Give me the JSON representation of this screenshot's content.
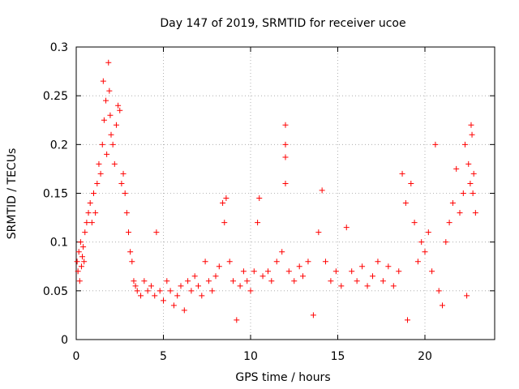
{
  "chart_data": {
    "type": "scatter",
    "title": "Day 147 of 2019, SRMTID for receiver ucoe",
    "xlabel": "GPS time / hours",
    "ylabel": "SRMTID / TECUs",
    "xlim": [
      0,
      24
    ],
    "ylim": [
      0,
      0.3
    ],
    "xticks": [
      0,
      5,
      10,
      15,
      20
    ],
    "yticks": [
      0,
      0.05,
      0.1,
      0.15,
      0.2,
      0.25,
      0.3
    ],
    "xtick_labels": [
      "0",
      "5",
      "10",
      "15",
      "20"
    ],
    "ytick_labels": [
      "0",
      "0.05",
      "0.1",
      "0.15",
      "0.2",
      "0.25",
      "0.3"
    ],
    "grid": true,
    "marker": "+",
    "color": "#ff0000",
    "series": [
      {
        "name": "SRMTID",
        "points": [
          [
            0.05,
            0.08
          ],
          [
            0.1,
            0.07
          ],
          [
            0.15,
            0.09
          ],
          [
            0.2,
            0.06
          ],
          [
            0.25,
            0.1
          ],
          [
            0.3,
            0.075
          ],
          [
            0.35,
            0.085
          ],
          [
            0.4,
            0.095
          ],
          [
            0.45,
            0.08
          ],
          [
            0.5,
            0.11
          ],
          [
            0.6,
            0.12
          ],
          [
            0.7,
            0.13
          ],
          [
            0.8,
            0.14
          ],
          [
            0.9,
            0.12
          ],
          [
            1.0,
            0.15
          ],
          [
            1.1,
            0.13
          ],
          [
            1.2,
            0.16
          ],
          [
            1.3,
            0.18
          ],
          [
            1.4,
            0.17
          ],
          [
            1.5,
            0.2
          ],
          [
            1.55,
            0.265
          ],
          [
            1.6,
            0.225
          ],
          [
            1.7,
            0.245
          ],
          [
            1.75,
            0.19
          ],
          [
            1.85,
            0.284
          ],
          [
            1.9,
            0.255
          ],
          [
            1.95,
            0.23
          ],
          [
            2.0,
            0.21
          ],
          [
            2.1,
            0.2
          ],
          [
            2.2,
            0.18
          ],
          [
            2.3,
            0.22
          ],
          [
            2.4,
            0.24
          ],
          [
            2.5,
            0.235
          ],
          [
            2.6,
            0.16
          ],
          [
            2.7,
            0.17
          ],
          [
            2.8,
            0.15
          ],
          [
            2.9,
            0.13
          ],
          [
            3.0,
            0.11
          ],
          [
            3.1,
            0.09
          ],
          [
            3.2,
            0.08
          ],
          [
            3.3,
            0.06
          ],
          [
            3.4,
            0.055
          ],
          [
            3.5,
            0.05
          ],
          [
            3.7,
            0.045
          ],
          [
            3.9,
            0.06
          ],
          [
            4.1,
            0.05
          ],
          [
            4.3,
            0.055
          ],
          [
            4.5,
            0.045
          ],
          [
            4.6,
            0.11
          ],
          [
            4.8,
            0.05
          ],
          [
            5.0,
            0.04
          ],
          [
            5.2,
            0.06
          ],
          [
            5.4,
            0.05
          ],
          [
            5.6,
            0.035
          ],
          [
            5.8,
            0.045
          ],
          [
            6.0,
            0.055
          ],
          [
            6.2,
            0.03
          ],
          [
            6.4,
            0.06
          ],
          [
            6.6,
            0.05
          ],
          [
            6.8,
            0.065
          ],
          [
            7.0,
            0.055
          ],
          [
            7.2,
            0.045
          ],
          [
            7.4,
            0.08
          ],
          [
            7.6,
            0.06
          ],
          [
            7.8,
            0.05
          ],
          [
            8.0,
            0.065
          ],
          [
            8.2,
            0.075
          ],
          [
            8.4,
            0.14
          ],
          [
            8.5,
            0.12
          ],
          [
            8.6,
            0.145
          ],
          [
            8.8,
            0.08
          ],
          [
            9.0,
            0.06
          ],
          [
            9.2,
            0.02
          ],
          [
            9.4,
            0.055
          ],
          [
            9.6,
            0.07
          ],
          [
            9.8,
            0.06
          ],
          [
            10.0,
            0.05
          ],
          [
            10.2,
            0.07
          ],
          [
            10.4,
            0.12
          ],
          [
            10.5,
            0.145
          ],
          [
            10.7,
            0.065
          ],
          [
            11.0,
            0.07
          ],
          [
            11.2,
            0.06
          ],
          [
            11.5,
            0.08
          ],
          [
            11.8,
            0.09
          ],
          [
            12.0,
            0.22
          ],
          [
            12.0,
            0.2
          ],
          [
            12.0,
            0.187
          ],
          [
            12.0,
            0.16
          ],
          [
            12.2,
            0.07
          ],
          [
            12.5,
            0.06
          ],
          [
            12.8,
            0.075
          ],
          [
            13.0,
            0.065
          ],
          [
            13.3,
            0.08
          ],
          [
            13.6,
            0.025
          ],
          [
            13.9,
            0.11
          ],
          [
            14.1,
            0.153
          ],
          [
            14.3,
            0.08
          ],
          [
            14.6,
            0.06
          ],
          [
            14.9,
            0.07
          ],
          [
            15.2,
            0.055
          ],
          [
            15.5,
            0.115
          ],
          [
            15.8,
            0.07
          ],
          [
            16.1,
            0.06
          ],
          [
            16.4,
            0.075
          ],
          [
            16.7,
            0.055
          ],
          [
            17.0,
            0.065
          ],
          [
            17.3,
            0.08
          ],
          [
            17.6,
            0.06
          ],
          [
            17.9,
            0.075
          ],
          [
            18.2,
            0.055
          ],
          [
            18.5,
            0.07
          ],
          [
            18.7,
            0.17
          ],
          [
            18.9,
            0.14
          ],
          [
            19.0,
            0.02
          ],
          [
            19.2,
            0.16
          ],
          [
            19.4,
            0.12
          ],
          [
            19.6,
            0.08
          ],
          [
            19.8,
            0.1
          ],
          [
            20.0,
            0.09
          ],
          [
            20.2,
            0.11
          ],
          [
            20.4,
            0.07
          ],
          [
            20.6,
            0.2
          ],
          [
            20.8,
            0.05
          ],
          [
            21.0,
            0.035
          ],
          [
            21.2,
            0.1
          ],
          [
            21.4,
            0.12
          ],
          [
            21.6,
            0.14
          ],
          [
            21.8,
            0.175
          ],
          [
            22.0,
            0.13
          ],
          [
            22.2,
            0.15
          ],
          [
            22.3,
            0.2
          ],
          [
            22.4,
            0.045
          ],
          [
            22.5,
            0.18
          ],
          [
            22.6,
            0.16
          ],
          [
            22.65,
            0.22
          ],
          [
            22.7,
            0.21
          ],
          [
            22.75,
            0.15
          ],
          [
            22.8,
            0.17
          ],
          [
            22.9,
            0.13
          ]
        ]
      }
    ]
  }
}
